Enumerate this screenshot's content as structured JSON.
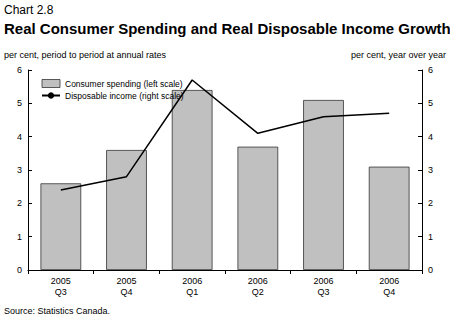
{
  "chart_data": {
    "type": "bar",
    "chart_number": "Chart 2.8",
    "title": "Real Consumer Spending and Real Disposable Income Growth",
    "ylabel": "per cent, period to period at annual rates",
    "y2label": "per cent, year over year",
    "source": "Source: Statistics Canada.",
    "categories": [
      "2005\nQ3",
      "2005\nQ4",
      "2006\nQ1",
      "2006\nQ2",
      "2006\nQ3",
      "2006\nQ4"
    ],
    "series": [
      {
        "name": "Consumer spending (left scale)",
        "type": "bar",
        "color": "#c0c0c0",
        "values": [
          2.6,
          3.6,
          5.4,
          3.7,
          5.1,
          3.1
        ]
      },
      {
        "name": "Disposable income (right scale)",
        "type": "line",
        "axis": "y2",
        "color": "#000000",
        "values": [
          2.4,
          2.8,
          5.7,
          4.1,
          4.6,
          4.7
        ]
      }
    ],
    "ylim": [
      0,
      6
    ],
    "yticks": [
      0,
      1,
      2,
      3,
      4,
      5,
      6
    ],
    "y2lim": [
      0,
      6
    ],
    "y2ticks": [
      0,
      1,
      2,
      3,
      4,
      5,
      6
    ],
    "grid": false,
    "legend": "upper left"
  }
}
